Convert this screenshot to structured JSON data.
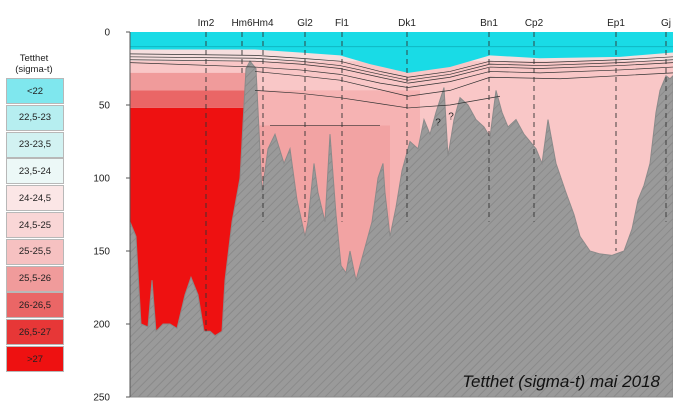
{
  "chart_data": {
    "type": "area",
    "title": "Tetthet (sigma-t) mai 2018",
    "legend": {
      "title_line1": "Tetthet",
      "title_line2": "(sigma-t)",
      "classes": [
        {
          "label": "<22",
          "color": "#7fe7ee"
        },
        {
          "label": "22,5-23",
          "color": "#b6eef0"
        },
        {
          "label": "23-23,5",
          "color": "#d2f2f2"
        },
        {
          "label": "23,5-24",
          "color": "#ecf8f7"
        },
        {
          "label": "24-24,5",
          "color": "#fbe6e6"
        },
        {
          "label": "24,5-25",
          "color": "#f9d6d6"
        },
        {
          "label": "25-25,5",
          "color": "#f6c1c1"
        },
        {
          "label": "25,5-26",
          "color": "#f09b9b"
        },
        {
          "label": "26-26,5",
          "color": "#ea6666"
        },
        {
          "label": "26,5-27",
          "color": "#e73737"
        },
        {
          "label": ">27",
          "color": "#ee1111"
        }
      ]
    },
    "y_axis": {
      "ticks": [
        0,
        50,
        100,
        150,
        200,
        250
      ],
      "ylim": [
        0,
        250
      ],
      "inverted": true
    },
    "stations": [
      "Im2",
      "Hm6",
      "Hm4",
      "Gl2",
      "Fl1",
      "Dk1",
      "Bn1",
      "Cp2",
      "Ep1",
      "Gj"
    ],
    "annotations": [
      "?",
      "?"
    ],
    "colors": {
      "seabed": "#9a9a9a",
      "surface": "#19dbe6"
    }
  }
}
